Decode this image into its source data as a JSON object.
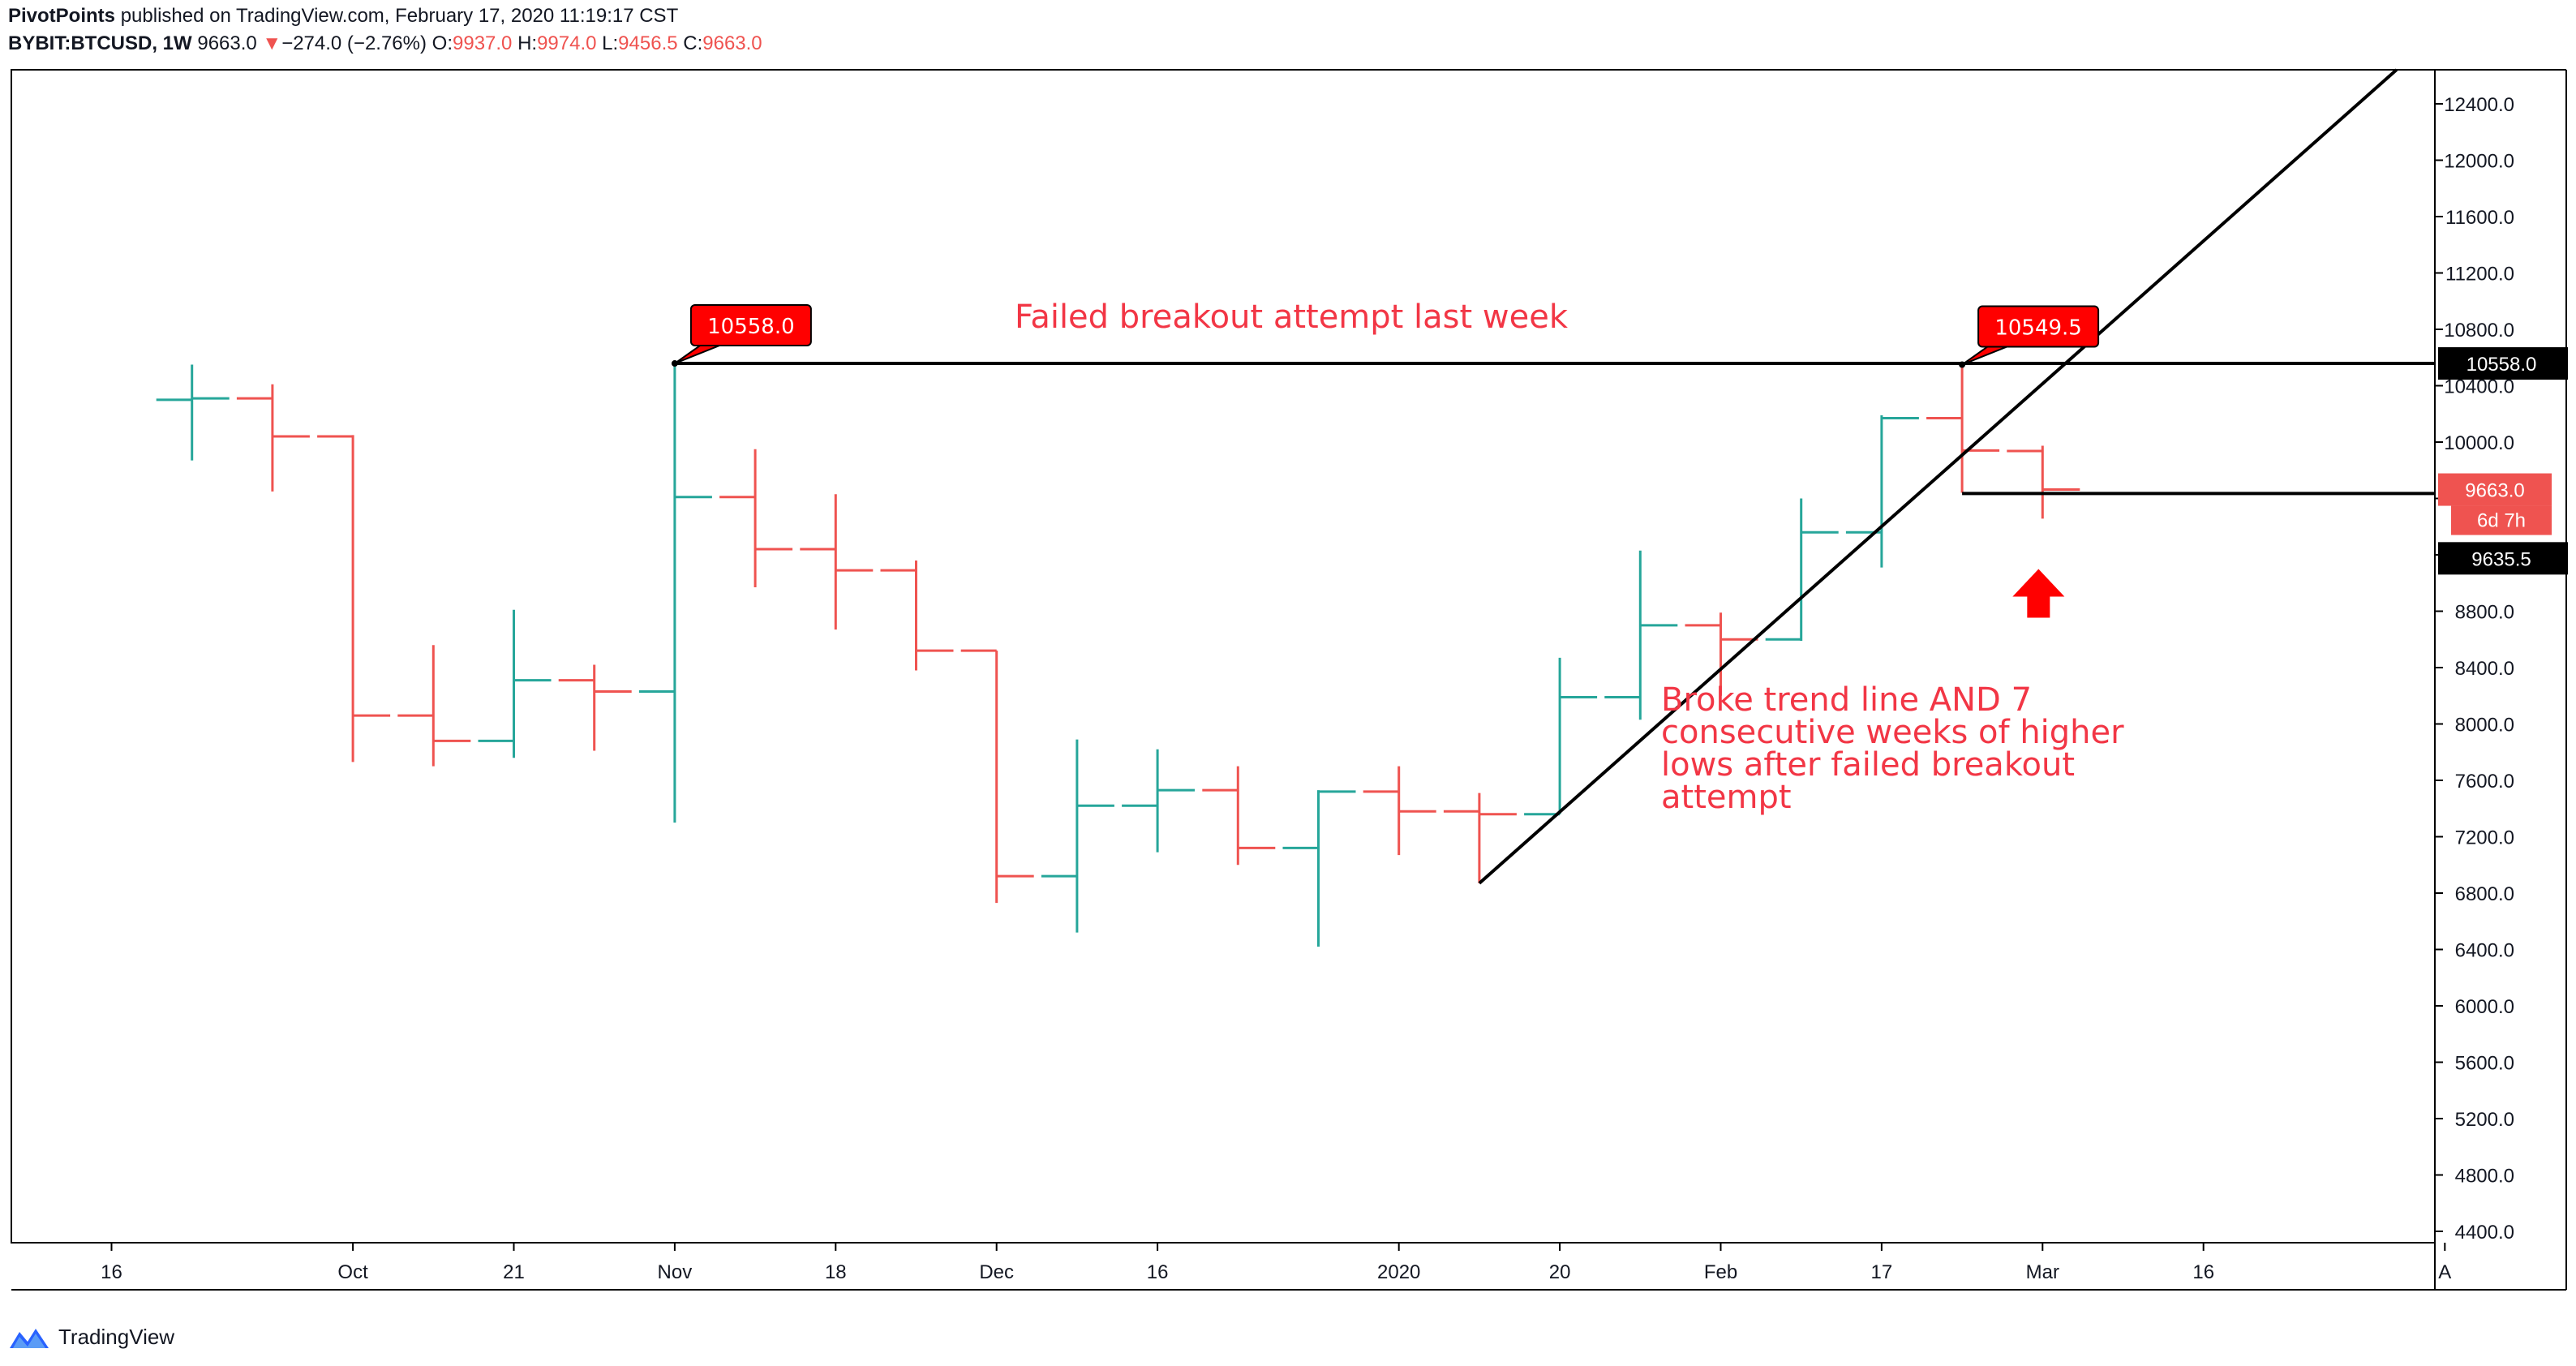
{
  "header": {
    "author": "PivotPoints",
    "published": "published on TradingView.com, February 17, 2020 11:19:17 CST",
    "symbol": "BYBIT:BTCUSD, 1W",
    "last": "9663.0",
    "change_arrow": "▼",
    "change": "−274.0 (−2.76%)",
    "o_label": "O:",
    "o_value": "9937.0",
    "h_label": "H:",
    "h_value": "9974.0",
    "l_label": "L:",
    "l_value": "9456.5",
    "c_label": "C:",
    "c_value": "9663.0"
  },
  "footer": {
    "brand": "TradingView",
    "logo_icon": "tradingview-logo-icon"
  },
  "colors": {
    "up": "#26a69a",
    "down": "#ef5350",
    "annotation": "#f23645",
    "label_red": "#ff0000",
    "line": "#000000"
  },
  "chart_data": {
    "type": "ohlc",
    "interval": "1W",
    "symbol": "BYBIT:BTCUSD",
    "ylim": [
      4200,
      12800
    ],
    "y_ticks": [
      4400,
      4800,
      5200,
      5600,
      6000,
      6400,
      6800,
      7200,
      7600,
      8000,
      8400,
      8800,
      9200,
      9600,
      10000,
      10400,
      10800,
      11200,
      11600,
      12000,
      12400
    ],
    "y_tick_labels": [
      "4400.0",
      "4800.0",
      "5200.0",
      "5600.0",
      "6000.0",
      "6400.0",
      "6800.0",
      "7200.0",
      "7600.0",
      "8000.0",
      "8400.0",
      "8800.0",
      "9200.0",
      "9600.0",
      "10000.0",
      "10400.0",
      "10800.0",
      "11200.0",
      "11600.0",
      "12000.0",
      "12400.0"
    ],
    "x_axis_labels": [
      {
        "label": "16",
        "bar": -1
      },
      {
        "label": "Oct",
        "bar": 2
      },
      {
        "label": "21",
        "bar": 4
      },
      {
        "label": "Nov",
        "bar": 6
      },
      {
        "label": "18",
        "bar": 8
      },
      {
        "label": "Dec",
        "bar": 10
      },
      {
        "label": "16",
        "bar": 12
      },
      {
        "label": "2020",
        "bar": 15
      },
      {
        "label": "20",
        "bar": 17
      },
      {
        "label": "Feb",
        "bar": 19
      },
      {
        "label": "17",
        "bar": 21
      },
      {
        "label": "Mar",
        "bar": 23
      },
      {
        "label": "16",
        "bar": 25
      },
      {
        "label": "A",
        "bar": 28
      }
    ],
    "bars": [
      {
        "open": 10300,
        "high": 10550,
        "low": 9870,
        "close": 10310
      },
      {
        "open": 10310,
        "high": 10410,
        "low": 9650,
        "close": 10040
      },
      {
        "open": 10040,
        "high": 10050,
        "low": 7730,
        "close": 8060
      },
      {
        "open": 8060,
        "high": 8560,
        "low": 7700,
        "close": 7880
      },
      {
        "open": 7880,
        "high": 8810,
        "low": 7760,
        "close": 8310
      },
      {
        "open": 8310,
        "high": 8420,
        "low": 7810,
        "close": 8230
      },
      {
        "open": 8230,
        "high": 10558,
        "low": 7300,
        "close": 9610
      },
      {
        "open": 9610,
        "high": 9950,
        "low": 8970,
        "close": 9240
      },
      {
        "open": 9240,
        "high": 9630,
        "low": 8670,
        "close": 9090
      },
      {
        "open": 9090,
        "high": 9160,
        "low": 8380,
        "close": 8520
      },
      {
        "open": 8520,
        "high": 8520,
        "low": 6730,
        "close": 6920
      },
      {
        "open": 6920,
        "high": 7890,
        "low": 6520,
        "close": 7420
      },
      {
        "open": 7420,
        "high": 7820,
        "low": 7090,
        "close": 7530
      },
      {
        "open": 7530,
        "high": 7700,
        "low": 7000,
        "close": 7120
      },
      {
        "open": 7120,
        "high": 7530,
        "low": 6420,
        "close": 7520
      },
      {
        "open": 7520,
        "high": 7700,
        "low": 7070,
        "close": 7380
      },
      {
        "open": 7380,
        "high": 7510,
        "low": 6870,
        "close": 7360
      },
      {
        "open": 7360,
        "high": 8470,
        "low": 7360,
        "close": 8190
      },
      {
        "open": 8190,
        "high": 9230,
        "low": 8030,
        "close": 8700
      },
      {
        "open": 8700,
        "high": 8790,
        "low": 8200,
        "close": 8600
      },
      {
        "open": 8600,
        "high": 9600,
        "low": 8590,
        "close": 9360
      },
      {
        "open": 9360,
        "high": 10190,
        "low": 9110,
        "close": 10170
      },
      {
        "open": 10170,
        "high": 10549.5,
        "low": 9640,
        "close": 9940
      },
      {
        "open": 9937,
        "high": 9974,
        "low": 9456.5,
        "close": 9663
      }
    ],
    "price_labels": [
      {
        "text": "10558.0",
        "value": 10558,
        "style": "black"
      },
      {
        "text": "9663.0",
        "value": 9663,
        "style": "red",
        "sub": "6d 7h"
      },
      {
        "text": "9635.5",
        "value": 9635.5,
        "style": "black"
      }
    ],
    "drawings": [
      {
        "kind": "hline",
        "from_bar": 6,
        "value": 10558
      },
      {
        "kind": "hline",
        "from_bar": 22,
        "value": 9635.5
      },
      {
        "kind": "trendline",
        "from": {
          "bar": 16,
          "value": 6870
        },
        "to": {
          "bar": 27.4,
          "value": 12800
        }
      }
    ],
    "callouts": [
      {
        "text": "10558.0",
        "bar": 6,
        "value": 10558
      },
      {
        "text": "10549.5",
        "bar": 22,
        "value": 10549.5
      }
    ],
    "annotations": [
      {
        "text": "Failed breakout attempt last week"
      },
      {
        "text": "Broke trend line AND 7 consecutive weeks of higher lows after failed breakout attempt",
        "lines": [
          "Broke trend line AND 7",
          "consecutive weeks of higher",
          "lows after failed breakout",
          "attempt"
        ]
      }
    ],
    "arrow": {
      "bar": 22.95,
      "value": 8950,
      "direction": "up",
      "icon": "arrow-up-icon"
    }
  }
}
